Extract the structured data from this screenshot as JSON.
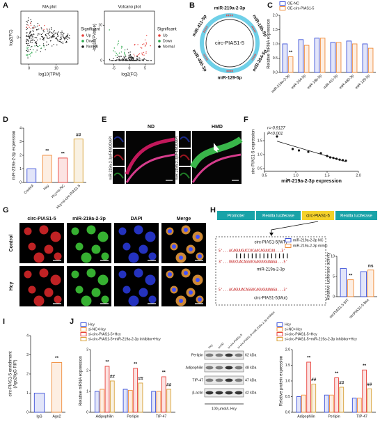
{
  "panels": [
    "A",
    "B",
    "C",
    "D",
    "E",
    "F",
    "G",
    "H",
    "I",
    "J"
  ],
  "panel_a": {
    "ma": {
      "title": "MA plot",
      "xlabel": "log10(TPM)",
      "ylabel": "log2(FC)",
      "xticks": [
        0,
        10
      ],
      "xlim": [
        -3,
        18
      ],
      "yticks": [
        0
      ],
      "ylim": [
        -6,
        6
      ]
    },
    "volcano": {
      "title": "Volcano plot",
      "xlabel": "log2(FC)",
      "ylabel": "-log10(PValue)",
      "xticks": [
        -5,
        0,
        5
      ],
      "xlim": [
        -8,
        8
      ],
      "yticks": [
        0,
        10
      ],
      "ylim": [
        -1,
        14
      ]
    },
    "legend_title": "Significant",
    "legend": [
      {
        "name": "Up",
        "color": "#e8413c"
      },
      {
        "name": "Down",
        "color": "#2aa84a"
      },
      {
        "name": "Normal",
        "color": "#222222"
      }
    ]
  },
  "panel_b": {
    "center": "circ-PIAS1-5",
    "mirnas": [
      "miR-219a-2-3p",
      "miR-18b-5p",
      "miR-204-5p",
      "miR-129-5p",
      "miR-490-3p",
      "miR-411-5p"
    ]
  },
  "panel_e": {
    "groups": [
      "ND",
      "HMD"
    ],
    "stain": "miR-219a-2-3p/F4/80/DAPI"
  },
  "panel_g": {
    "columns": [
      "circ-PIAS1-5",
      "miR-219a-2-3p",
      "DAPI",
      "Merge"
    ],
    "rows": [
      "Control",
      "Hcy"
    ]
  },
  "panel_h": {
    "construct": [
      "Promoter",
      "Renilla luciferase",
      "circ-PIAS1-5",
      "Renilla luciferase"
    ],
    "wt_label": "circ-PIAS1-5(WT)",
    "wt_seq": "5'...ACAGUUGUCCUCAACAGUUCUU...3'",
    "mir_seq": "3'...UGUCUACAGGUCGAGUUGUAAGA...5'",
    "mir_label": "miR-219a-2-3p",
    "mut_seq": "5'...ACAGUUACAGGUCAGUGUUAAGA...3'",
    "mut_label": "circ-PIAS1-5(Mut)"
  },
  "panel_j_blot": {
    "lanes": [
      "Hcy",
      "si-NC",
      "si-circ-PIAS1-5",
      "si-circ-PIAS1-5+miR-219a-2-3p inhibitor"
    ],
    "proteins": [
      "Perlipin",
      "Adipophilin",
      "TIP-47",
      "β-actin"
    ],
    "sizes": [
      "62 kDa",
      "48 kDa",
      "47 kDa",
      "42 kDa"
    ],
    "treatment": "100 μmol/L Hcy"
  },
  "chart_data": [
    {
      "type": "bar",
      "ylabel": "Relative mRNA expression",
      "xrot": true,
      "categories": [
        "miR-219a-2-3p",
        "miR-204-5p",
        "miR-18b-5p",
        "miR-411-5p",
        "miR-490-3p",
        "miR-129-5p"
      ],
      "series": [
        {
          "name": "OE-NC",
          "color": "#3a4fd8",
          "values": [
            1.0,
            1.15,
            1.2,
            1.05,
            1.1,
            1.0
          ]
        },
        {
          "name": "OE-circ-PIAS1-5",
          "color": "#f08c3a",
          "values": [
            0.55,
            0.95,
            1.2,
            1.05,
            1.0,
            0.85
          ]
        }
      ],
      "ylim": [
        0,
        2
      ],
      "yticks": [
        {
          "value": 0,
          "label": "0.0"
        },
        {
          "value": 0.5,
          "label": "0.5"
        },
        {
          "value": 1,
          "label": "1.0"
        },
        {
          "value": 1.5,
          "label": "1.5"
        },
        {
          "value": 2,
          "label": "2.0"
        }
      ],
      "annotations": [
        {
          "text": "**",
          "series": 1,
          "index": 0
        }
      ]
    },
    {
      "type": "bar",
      "ylabel": "miR-219a-2-3p expression",
      "xrot": true,
      "categories": [
        "Control",
        "Hcy",
        "Hcy+si-NC",
        "Hcy+si-circ-PIAS1-5"
      ],
      "series": [
        {
          "values": [
            1.0,
            2.0,
            1.8,
            3.2
          ],
          "colors": [
            "#3a4fd8",
            "#f08c3a",
            "#e8413c",
            "#d9a23a"
          ]
        }
      ],
      "ylim": [
        0,
        4
      ],
      "yticks": [
        0,
        1,
        2,
        3,
        4
      ],
      "annotations": [
        {
          "text": "**",
          "series": 0,
          "index": 1
        },
        {
          "text": "**",
          "series": 0,
          "index": 2
        },
        {
          "text": "##",
          "series": 0,
          "index": 3
        }
      ]
    },
    {
      "type": "scatter",
      "stats": [
        "r=-0.9127",
        "P<0.001"
      ],
      "xlabel": "miR-219a-2-3p expression",
      "ylabel": "circ-PIAS1-5 expression",
      "x": [
        0.7,
        0.95,
        1.05,
        1.2,
        1.4,
        1.5,
        1.55,
        1.6,
        1.65,
        1.7,
        1.75,
        1.8
      ],
      "values": [
        1.65,
        1.2,
        1.15,
        1.1,
        1.05,
        0.95,
        0.9,
        0.88,
        0.85,
        0.82,
        0.8,
        0.78
      ],
      "xlim": [
        0.5,
        2
      ],
      "xticks": [
        {
          "value": 0.5,
          "label": "0.5"
        },
        {
          "value": 1,
          "label": "1.0"
        },
        {
          "value": 1.5,
          "label": "1.5"
        },
        {
          "value": 2,
          "label": "2.0"
        }
      ],
      "ylim": [
        0.4,
        1.8
      ],
      "yticks": [
        {
          "value": 0.5,
          "label": "0.5"
        },
        {
          "value": 1,
          "label": "1.0"
        },
        {
          "value": 1.5,
          "label": "1.5"
        }
      ],
      "color": "#111111"
    },
    {
      "type": "bar",
      "ylabel": "Relative luciferase activity",
      "xrot": true,
      "categories": [
        "circPIAS1-5-WT",
        "circPIAS1-5-Mut"
      ],
      "series": [
        {
          "name": "miR-219a-2-3p NC",
          "color": "#3a4fd8",
          "values": [
            7.0,
            6.2
          ]
        },
        {
          "name": "miR-219a-2-3p mimic",
          "color": "#f08c3a",
          "values": [
            4.2,
            6.6
          ]
        }
      ],
      "ylim": [
        0,
        10
      ],
      "yticks": [
        0,
        5,
        10
      ],
      "annotations": [
        {
          "text": "**",
          "series": 1,
          "index": 0
        },
        {
          "text": "ns",
          "series": 1,
          "index": 1
        }
      ]
    },
    {
      "type": "bar",
      "ylabel": [
        "circ-PIAS1-5 enrichment",
        "(Ago2/IgG RIP)"
      ],
      "categories": [
        "IgG",
        "Ago2"
      ],
      "series": [
        {
          "values": [
            1.0,
            2.6
          ],
          "colors": [
            "#3a4fd8",
            "#f08c3a"
          ]
        }
      ],
      "ylim": [
        0,
        4
      ],
      "yticks": [
        0,
        1,
        2,
        3,
        4
      ],
      "annotations": [
        {
          "text": "**",
          "series": 0,
          "index": 1
        }
      ]
    },
    {
      "type": "bar",
      "ylabel": "Relative mRNA expression",
      "categories": [
        "Adipophilin",
        "Perlipin",
        "TIP-47"
      ],
      "series": [
        {
          "name": "Hcy",
          "color": "#3a4fd8",
          "values": [
            1.0,
            1.1,
            1.0
          ]
        },
        {
          "name": "si-NC+Hcy",
          "color": "#f08c3a",
          "values": [
            1.1,
            1.05,
            1.0
          ]
        },
        {
          "name": "si-circ-PIAS1-5+Hcy",
          "color": "#e8413c",
          "values": [
            2.2,
            2.1,
            1.7
          ]
        },
        {
          "name": "si-circ-PIAS1-5+miR-219a-2-3p inhibitor+Hcy",
          "color": "#d9a23a",
          "values": [
            1.5,
            1.4,
            1.1
          ]
        }
      ],
      "ylim": [
        0,
        3
      ],
      "yticks": [
        0,
        1,
        2,
        3
      ],
      "annotations": [
        {
          "text": "**",
          "series": 2,
          "index": 0
        },
        {
          "text": "##",
          "series": 3,
          "index": 0
        },
        {
          "text": "**",
          "series": 2,
          "index": 1
        },
        {
          "text": "##",
          "series": 3,
          "index": 1
        },
        {
          "text": "**",
          "series": 2,
          "index": 2
        },
        {
          "text": "##",
          "series": 3,
          "index": 2
        }
      ]
    },
    {
      "type": "bar",
      "ylabel": "Relative protein expression",
      "categories": [
        "Adipophilin",
        "Perlipin",
        "TIP-47"
      ],
      "series": [
        {
          "name": "Hcy",
          "color": "#3a4fd8",
          "values": [
            0.5,
            0.55,
            0.45
          ]
        },
        {
          "name": "si-NC+Hcy",
          "color": "#f08c3a",
          "values": [
            0.55,
            0.55,
            0.45
          ]
        },
        {
          "name": "si-circ-PIAS1-5+Hcy",
          "color": "#e8413c",
          "values": [
            1.6,
            1.1,
            1.35
          ]
        },
        {
          "name": "si-circ-PIAS1-5+miR-219a-2-3p inhibitor+Hcy",
          "color": "#d9a23a",
          "values": [
            0.9,
            0.8,
            0.75
          ]
        }
      ],
      "ylim": [
        0,
        2
      ],
      "yticks": [
        {
          "value": 0,
          "label": "0.0"
        },
        {
          "value": 0.5,
          "label": "0.5"
        },
        {
          "value": 1,
          "label": "1.0"
        },
        {
          "value": 1.5,
          "label": "1.5"
        },
        {
          "value": 2,
          "label": "2.0"
        }
      ],
      "annotations": [
        {
          "text": "**",
          "series": 2,
          "index": 0
        },
        {
          "text": "##",
          "series": 3,
          "index": 0
        },
        {
          "text": "**",
          "series": 2,
          "index": 1
        },
        {
          "text": "##",
          "series": 3,
          "index": 1
        },
        {
          "text": "**",
          "series": 2,
          "index": 2
        },
        {
          "text": "##",
          "series": 3,
          "index": 2
        }
      ]
    }
  ]
}
